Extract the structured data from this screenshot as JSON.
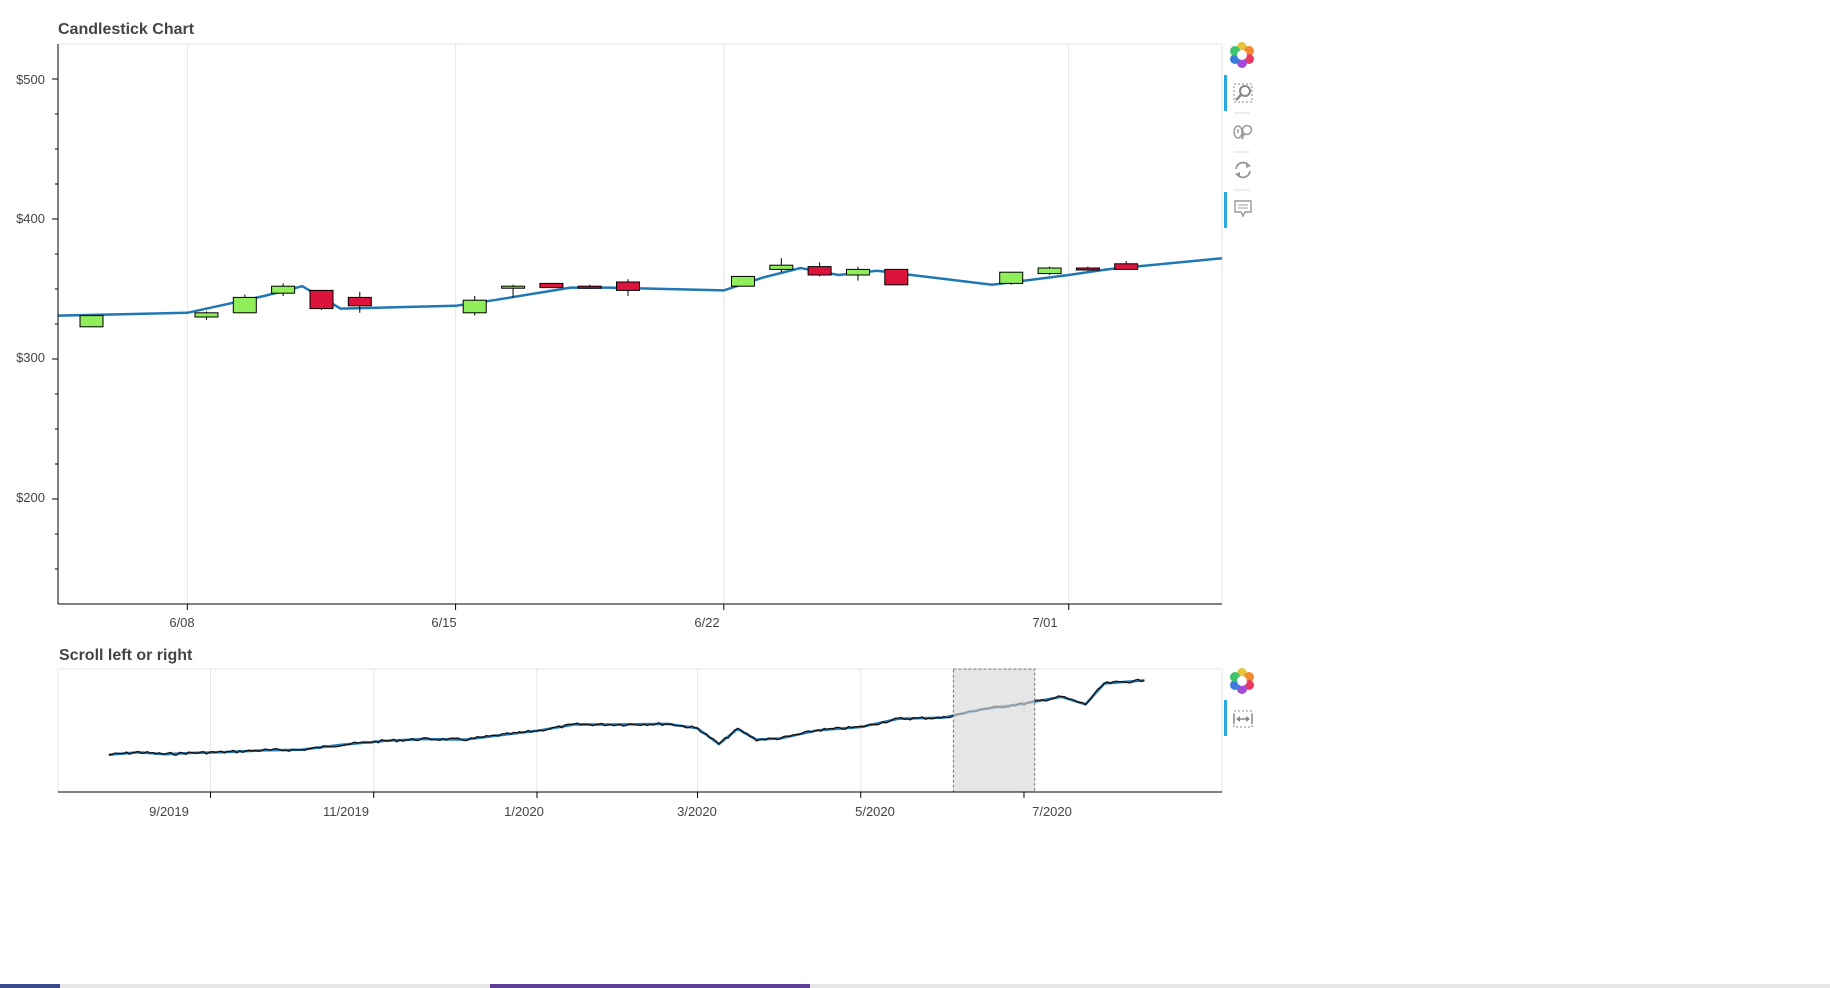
{
  "main_chart": {
    "title": "Candlestick Chart",
    "y_tick_labels": [
      "$200",
      "$300",
      "$400",
      "$500"
    ],
    "x_tick_labels": [
      "6/08",
      "6/15",
      "6/22",
      "7/01"
    ],
    "toolbar": [
      "bokeh-logo-icon",
      "box-zoom-icon",
      "wheel-zoom-icon",
      "reset-icon",
      "hover-icon"
    ]
  },
  "nav_chart": {
    "title": "Scroll left or right",
    "x_tick_labels": [
      "9/2019",
      "11/2019",
      "1/2020",
      "3/2020",
      "5/2020",
      "7/2020"
    ],
    "toolbar": [
      "bokeh-logo-icon",
      "range-tool-icon"
    ]
  },
  "colors": {
    "up": "#90ee5a",
    "down": "#dc143c",
    "line": "#1f77b4",
    "selection": "#e5e5e5"
  },
  "chart_data": [
    {
      "type": "candlestick",
      "title": "Candlestick Chart",
      "x_axis": "date",
      "y_axis_format": "$",
      "ylim": [
        125,
        525
      ],
      "xlim": [
        "2020-06-04T15:00",
        "2020-07-05"
      ],
      "grid": "x",
      "candles": [
        {
          "date": "2020-06-05",
          "open": 323,
          "high": 331,
          "low": 323,
          "close": 331
        },
        {
          "date": "2020-06-08",
          "open": 330,
          "high": 334,
          "low": 328,
          "close": 333
        },
        {
          "date": "2020-06-09",
          "open": 333,
          "high": 346,
          "low": 333,
          "close": 344
        },
        {
          "date": "2020-06-10",
          "open": 347,
          "high": 354,
          "low": 345,
          "close": 352
        },
        {
          "date": "2020-06-11",
          "open": 349,
          "high": 349,
          "low": 335,
          "close": 336
        },
        {
          "date": "2020-06-12",
          "open": 344,
          "high": 348,
          "low": 333,
          "close": 338
        },
        {
          "date": "2020-06-15",
          "open": 333,
          "high": 345,
          "low": 331,
          "close": 342
        },
        {
          "date": "2020-06-16",
          "open": 351,
          "high": 353,
          "low": 344,
          "close": 352
        },
        {
          "date": "2020-06-17",
          "open": 354,
          "high": 354,
          "low": 351,
          "close": 351
        },
        {
          "date": "2020-06-18",
          "open": 352,
          "high": 353,
          "low": 350,
          "close": 351
        },
        {
          "date": "2020-06-19",
          "open": 355,
          "high": 357,
          "low": 345,
          "close": 349
        },
        {
          "date": "2020-06-22",
          "open": 352,
          "high": 359,
          "low": 352,
          "close": 359
        },
        {
          "date": "2020-06-23",
          "open": 364,
          "high": 372,
          "low": 362,
          "close": 367
        },
        {
          "date": "2020-06-24",
          "open": 366,
          "high": 369,
          "low": 359,
          "close": 360
        },
        {
          "date": "2020-06-25",
          "open": 360,
          "high": 366,
          "low": 356,
          "close": 364
        },
        {
          "date": "2020-06-26",
          "open": 364,
          "high": 364,
          "low": 353,
          "close": 353
        },
        {
          "date": "2020-06-29",
          "open": 354,
          "high": 362,
          "low": 353,
          "close": 362
        },
        {
          "date": "2020-06-30",
          "open": 361,
          "high": 366,
          "low": 360,
          "close": 365
        },
        {
          "date": "2020-07-01",
          "open": 365,
          "high": 366,
          "low": 363,
          "close": 364
        },
        {
          "date": "2020-07-02",
          "open": 368,
          "high": 370,
          "low": 364,
          "close": 364
        }
      ],
      "line": {
        "x": [
          "2020-06-04T15:00",
          "2020-06-08",
          "2020-06-10",
          "2020-06-11",
          "2020-06-12",
          "2020-06-15",
          "2020-06-16",
          "2020-06-18",
          "2020-06-19",
          "2020-06-22",
          "2020-06-23",
          "2020-06-24",
          "2020-06-25",
          "2020-06-26",
          "2020-06-29",
          "2020-07-01",
          "2020-07-02",
          "2020-07-05"
        ],
        "y": [
          331,
          333,
          345,
          352,
          336,
          338,
          342,
          351,
          351,
          349,
          358,
          365,
          360,
          363,
          353,
          360,
          364,
          372
        ]
      }
    },
    {
      "type": "line",
      "title": "Scroll left or right",
      "x_axis": "date",
      "xlim": [
        "2019-07-06",
        "2020-09-13"
      ],
      "grid": "x",
      "selected_range": [
        "2020-06-04T15:00",
        "2020-07-05"
      ],
      "series": [
        {
          "x": [
            "2019-07-25",
            "2019-08-05",
            "2019-08-15",
            "2019-08-25",
            "2019-09-05",
            "2019-09-20",
            "2019-10-05",
            "2019-10-20",
            "2019-11-05",
            "2019-11-20",
            "2019-12-05",
            "2019-12-20",
            "2020-01-01",
            "2020-01-15",
            "2020-02-01",
            "2020-02-19",
            "2020-03-01",
            "2020-03-09",
            "2020-03-16",
            "2020-03-23",
            "2020-04-01",
            "2020-04-15",
            "2020-05-01",
            "2020-05-15",
            "2020-06-01",
            "2020-06-15",
            "2020-07-01",
            "2020-07-15",
            "2020-07-24",
            "2020-07-31",
            "2020-08-15"
          ],
          "y": [
            204,
            208,
            205,
            207,
            208,
            211,
            212,
            220,
            226,
            229,
            228,
            236,
            242,
            252,
            252,
            253,
            246,
            221,
            245,
            228,
            230,
            243,
            248,
            261,
            263,
            276,
            285,
            296,
            284,
            317,
            322
          ]
        }
      ]
    }
  ]
}
